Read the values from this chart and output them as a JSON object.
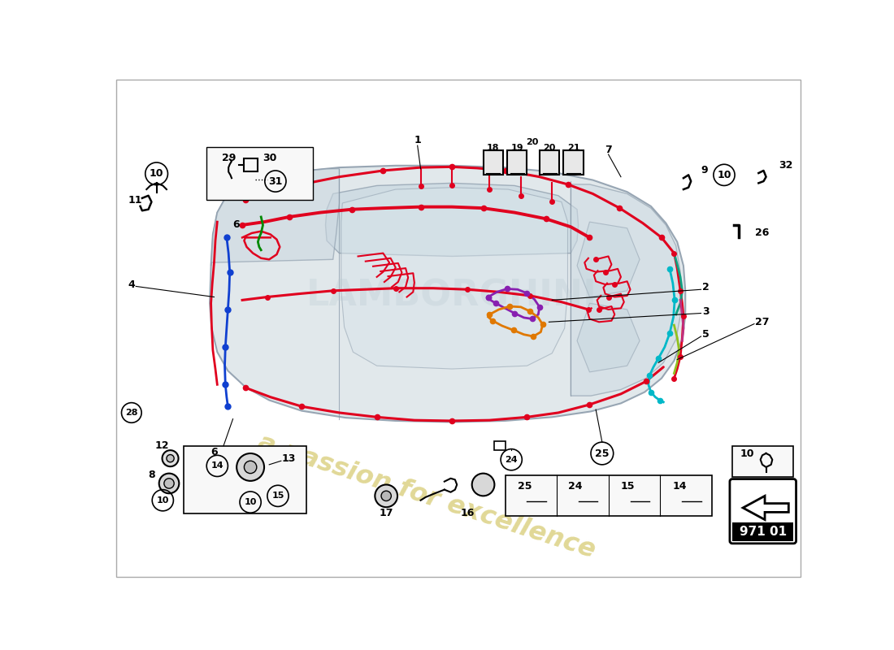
{
  "background": "#ffffff",
  "diagram_number": "971 01",
  "watermark": "a passion for excellence",
  "watermark_color": "#c8b840",
  "car_body_color": "#dce4e8",
  "car_edge_color": "#8898a8",
  "wiring": {
    "red": "#e0001e",
    "blue": "#1040d0",
    "green": "#008800",
    "purple": "#8820b0",
    "orange": "#e07800",
    "cyan": "#00b8c8",
    "teal": "#10a080",
    "lime": "#90c020",
    "pink": "#c03080"
  },
  "part_label_fontsize": 9,
  "border_color": "#aaaaaa",
  "box_color": "#f8f8f8"
}
